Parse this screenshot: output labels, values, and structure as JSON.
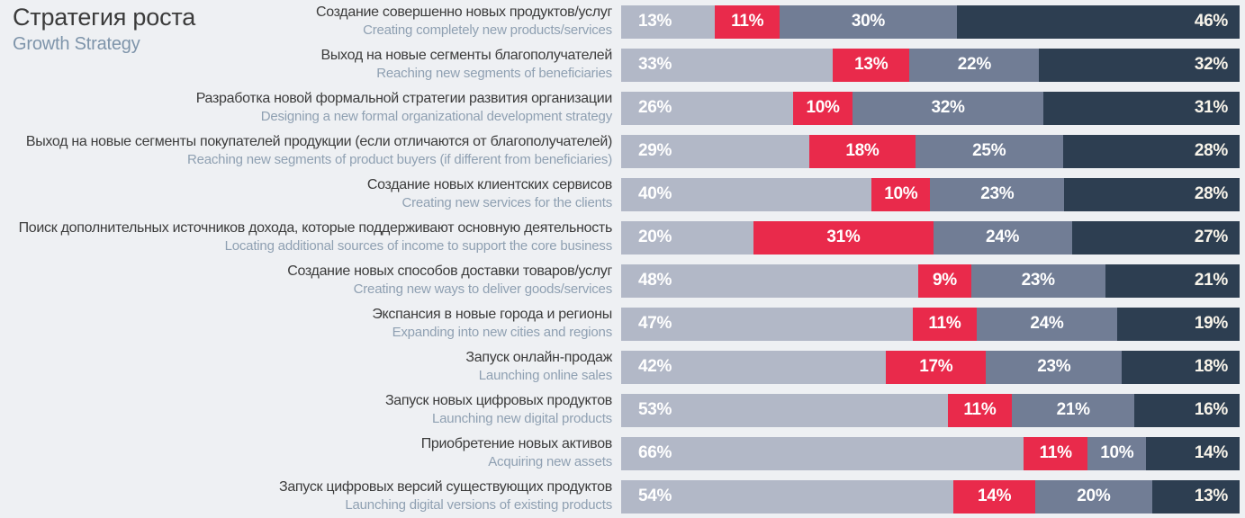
{
  "header": {
    "title_ru": "Стратегия роста",
    "title_en": "Growth Strategy"
  },
  "colors": {
    "background": "#eef0f3",
    "title": "#3b3b3b",
    "subtitle": "#7e94aa",
    "label_ru": "#3c3c3c",
    "label_en": "#8fa0b2",
    "value_text": "#ffffff",
    "segment_1": "#b2b8c7",
    "segment_2": "#e92a4b",
    "segment_3": "#717d95",
    "segment_4": "#2d3e51"
  },
  "chart_data": {
    "type": "bar",
    "orientation": "horizontal",
    "stacked": true,
    "unit": "%",
    "title": "Стратегия роста / Growth Strategy",
    "legend": "none",
    "axis": "none",
    "segment_colors": [
      "#b2b8c7",
      "#e92a4b",
      "#717d95",
      "#2d3e51"
    ],
    "rows": [
      {
        "label_ru": "Создание совершенно новых продуктов/услуг",
        "label_en": "Creating completely new products/services",
        "values": [
          13,
          11,
          30,
          46
        ],
        "labels": [
          "13%",
          "11%",
          "30%",
          "46%"
        ]
      },
      {
        "label_ru": "Выход на новые сегменты благополучателей",
        "label_en": "Reaching new segments of beneficiaries",
        "values": [
          33,
          13,
          22,
          32
        ],
        "labels": [
          "33%",
          "13%",
          "22%",
          "32%"
        ]
      },
      {
        "label_ru": "Разработка новой формальной стратегии развития организации",
        "label_en": "Designing a new formal organizational development strategy",
        "values": [
          26,
          10,
          32,
          31
        ],
        "labels": [
          "26%",
          "10%",
          "32%",
          "31%"
        ]
      },
      {
        "label_ru": "Выход на новые сегменты покупателей продукции (если отличаются от благополучателей)",
        "label_en": "Reaching new segments of product buyers (if different from beneficiaries)",
        "values": [
          29,
          18,
          25,
          28
        ],
        "labels": [
          "29%",
          "18%",
          "25%",
          "28%"
        ]
      },
      {
        "label_ru": "Создание новых клиентских сервисов",
        "label_en": "Creating new services for the clients",
        "values": [
          40,
          10,
          23,
          28
        ],
        "labels": [
          "40%",
          "10%",
          "23%",
          "28%"
        ]
      },
      {
        "label_ru": "Поиск дополнительных источников дохода, которые поддерживают основную деятельность",
        "label_en": "Locating additional sources of income to support the core business",
        "values": [
          20,
          31,
          24,
          27
        ],
        "labels": [
          "20%",
          "31%",
          "24%",
          "27%"
        ]
      },
      {
        "label_ru": "Создание новых способов доставки товаров/услуг",
        "label_en": "Creating new ways to deliver goods/services",
        "values": [
          48,
          9,
          23,
          21
        ],
        "labels": [
          "48%",
          "9%",
          "23%",
          "21%"
        ]
      },
      {
        "label_ru": "Экспансия в новые города и регионы",
        "label_en": "Expanding into new cities and regions",
        "values": [
          47,
          11,
          24,
          19
        ],
        "labels": [
          "47%",
          "11%",
          "24%",
          "19%"
        ]
      },
      {
        "label_ru": "Запуск онлайн-продаж",
        "label_en": "Launching online sales",
        "values": [
          42,
          17,
          23,
          18
        ],
        "labels": [
          "42%",
          "17%",
          "23%",
          "18%"
        ]
      },
      {
        "label_ru": "Запуск новых цифровых продуктов",
        "label_en": "Launching new digital products",
        "values": [
          53,
          11,
          21,
          16
        ],
        "labels": [
          "53%",
          "11%",
          "21%",
          "16%"
        ]
      },
      {
        "label_ru": "Приобретение новых активов",
        "label_en": "Acquiring new assets",
        "values": [
          66,
          11,
          10,
          14
        ],
        "labels": [
          "66%",
          "11%",
          "10%",
          "14%"
        ]
      },
      {
        "label_ru": "Запуск цифровых версий существующих продуктов",
        "label_en": "Launching digital versions of existing products",
        "values": [
          54,
          14,
          20,
          13
        ],
        "labels": [
          "54%",
          "14%",
          "20%",
          "13%"
        ]
      }
    ]
  }
}
